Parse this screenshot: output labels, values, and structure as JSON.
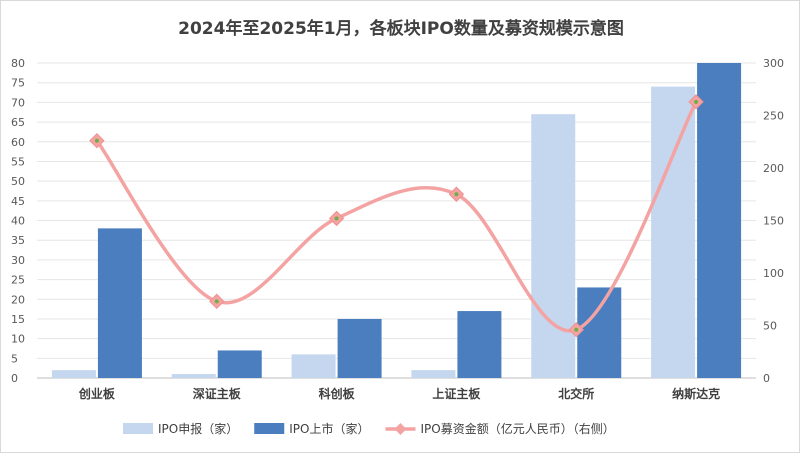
{
  "chart_data": {
    "type": "bar",
    "title": "2024年至2025年1月，各板块IPO数量及募资规模示意图",
    "categories": [
      "创业板",
      "深证主板",
      "科创板",
      "上证主板",
      "北交所",
      "纳斯达克"
    ],
    "series": [
      {
        "name": "IPO申报（家）",
        "type": "bar",
        "axis": "left",
        "color": "#c5d7ef",
        "values": [
          2,
          1,
          6,
          2,
          67,
          74
        ]
      },
      {
        "name": "IPO上市（家）",
        "type": "bar",
        "axis": "left",
        "color": "#4a7ebf",
        "values": [
          38,
          7,
          15,
          17,
          23,
          80
        ]
      },
      {
        "name": "IPO募资金额（亿元人民币）（右侧）",
        "type": "line",
        "axis": "right",
        "color": "#f4a3a3",
        "marker_color": "#70ad47",
        "values": [
          226,
          73,
          152,
          175,
          46,
          263
        ]
      }
    ],
    "y_left": {
      "min": 0,
      "max": 80,
      "step": 5
    },
    "y_right": {
      "min": 0,
      "max": 300,
      "step": 50
    },
    "legend_position": "bottom",
    "grid": true
  }
}
